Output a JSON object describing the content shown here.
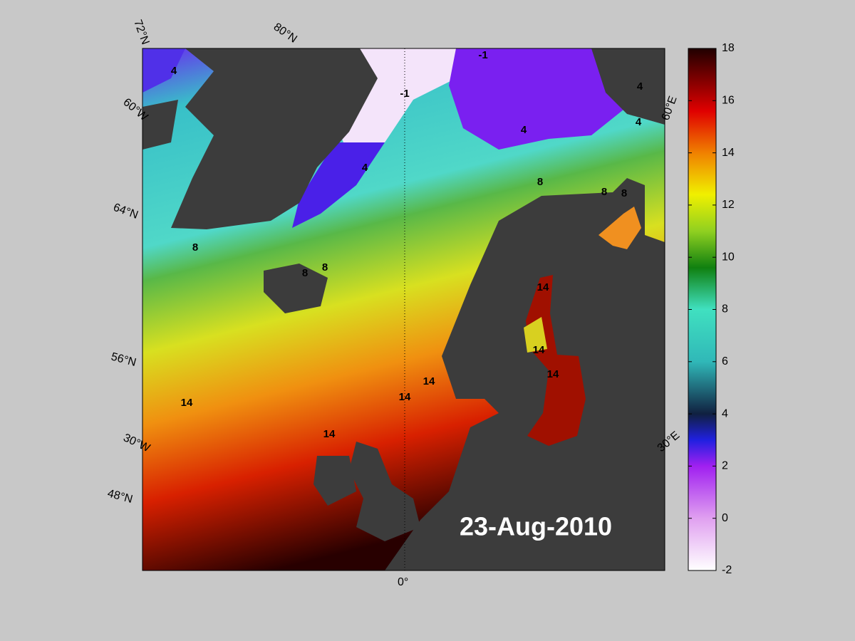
{
  "map": {
    "date_label": "23-Aug-2010",
    "graticule_labels": [
      "72°N",
      "80°N",
      "60°W",
      "64°N",
      "56°N",
      "30°W",
      "48°N",
      "0°",
      "60°E",
      "30°E"
    ],
    "contour_labels": [
      -1,
      -1,
      4,
      4,
      4,
      4,
      4,
      8,
      8,
      8,
      8,
      8,
      8,
      14,
      14,
      14,
      14,
      14,
      14,
      14
    ]
  },
  "colorbar": {
    "lim": [
      -2,
      18
    ],
    "ticks": [
      -2,
      0,
      2,
      4,
      6,
      8,
      10,
      12,
      14,
      16,
      18
    ]
  }
}
